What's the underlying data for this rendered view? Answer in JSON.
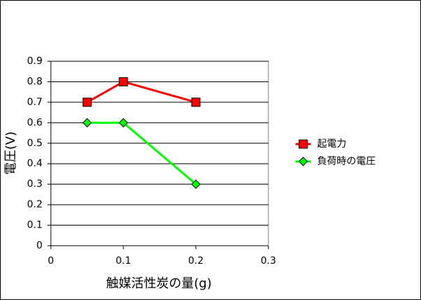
{
  "chart_data": {
    "type": "line",
    "x_label": "触媒活性炭の量(g)",
    "y_label": "電圧(V)",
    "x": [
      0.05,
      0.1,
      0.2
    ],
    "series": [
      {
        "name": "起電力",
        "color": "#ff0000",
        "marker": "square",
        "values": [
          0.7,
          0.8,
          0.7
        ]
      },
      {
        "name": "負荷時の電圧",
        "color": "#00ff00",
        "marker": "diamond",
        "values": [
          0.6,
          0.6,
          0.3
        ]
      }
    ],
    "xlim": [
      0,
      0.3
    ],
    "xticks": [
      0,
      0.1,
      0.2,
      0.3
    ],
    "ylim": [
      0,
      0.9
    ],
    "yticks": [
      0,
      0.1,
      0.2,
      0.3,
      0.4,
      0.5,
      0.6,
      0.7,
      0.8,
      0.9
    ],
    "grid": true,
    "legend": "right"
  }
}
